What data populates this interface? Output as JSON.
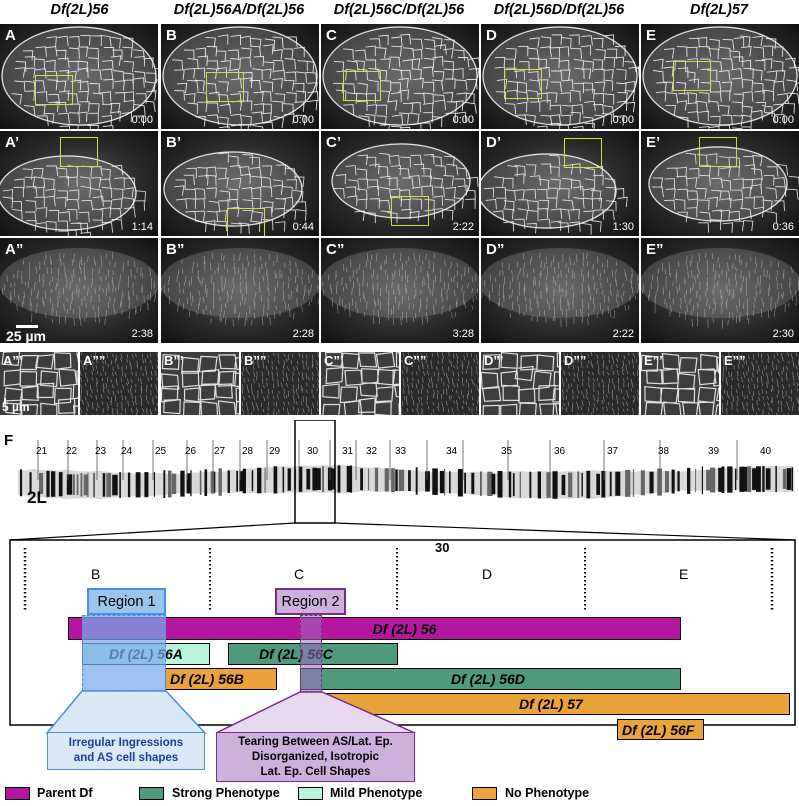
{
  "colors": {
    "parent_df": "#b5169f",
    "strong": "#4f9a7c",
    "mild": "#b6f4dc",
    "none": "#eca23a",
    "region1_fill": "#9bc4ef",
    "region1_border": "#4a8fe0",
    "region2_fill": "#cdb0dc",
    "region2_border": "#7a2d86",
    "roi_box": "#d8d84a"
  },
  "columns": [
    {
      "title": "Df(2L)56"
    },
    {
      "title": "Df(2L)56A/Df(2L)56"
    },
    {
      "title": "Df(2L)56C/Df(2L)56"
    },
    {
      "title": "Df(2L)56D/Df(2L)56"
    },
    {
      "title": "Df(2L)57"
    }
  ],
  "rows": [
    {
      "labels": [
        "A",
        "B",
        "C",
        "D",
        "E"
      ],
      "times": [
        "0:00",
        "0:00",
        "0:00",
        "0:00",
        "0:00"
      ]
    },
    {
      "labels": [
        "A’",
        "B’",
        "C’",
        "D’",
        "E’"
      ],
      "times": [
        "1:14",
        "0:44",
        "2:22",
        "1:30",
        "0:36"
      ]
    },
    {
      "labels": [
        "A”",
        "B”",
        "C”",
        "D”",
        "E”"
      ],
      "times": [
        "2:38",
        "2:28",
        "3:28",
        "2:22",
        "2:30"
      ]
    }
  ],
  "small_panels": [
    "A”’",
    "A””",
    "B”’",
    "B””",
    "C”’",
    "C””",
    "D”’",
    "D””",
    "E”’",
    "E””"
  ],
  "scalebars": {
    "large": "25 µm",
    "small": "5 µm"
  },
  "panel_f": {
    "label": "F",
    "chromosome": "2L",
    "bands": [
      "21",
      "22",
      "23",
      "24",
      "25",
      "26",
      "27",
      "28",
      "29",
      "30",
      "31",
      "32",
      "33",
      "34",
      "35",
      "36",
      "37",
      "38",
      "39",
      "40"
    ],
    "zoom_title": "30",
    "subdivisions": [
      "B",
      "C",
      "D",
      "E"
    ],
    "regions": [
      {
        "label": "Region 1"
      },
      {
        "label": "Region 2"
      }
    ],
    "deficiencies": [
      {
        "name": "Df (2L) 56",
        "class": "parent"
      },
      {
        "name": "Df (2L) 56A",
        "class": "mild"
      },
      {
        "name": "Df (2L) 56C",
        "class": "strong"
      },
      {
        "name": "Df (2L) 56B",
        "class": "none"
      },
      {
        "name": "Df (2L) 56D",
        "class": "strong"
      },
      {
        "name": "Df (2L) 57",
        "class": "none"
      },
      {
        "name": "Df (2L) 56F",
        "class": "none"
      }
    ],
    "callouts": [
      {
        "lines": [
          "Irregular Ingressions",
          "and AS cell shapes"
        ]
      },
      {
        "lines": [
          "Tearing Between AS/Lat. Ep.",
          "Disorganized, Isotropic",
          "Lat. Ep. Cell Shapes"
        ]
      }
    ],
    "legend": [
      {
        "label": "Parent Df",
        "class": "parent"
      },
      {
        "label": "Strong Phenotype",
        "class": "strong"
      },
      {
        "label": "Mild Phenotype",
        "class": "mild"
      },
      {
        "label": "No Phenotype",
        "class": "none"
      }
    ]
  }
}
